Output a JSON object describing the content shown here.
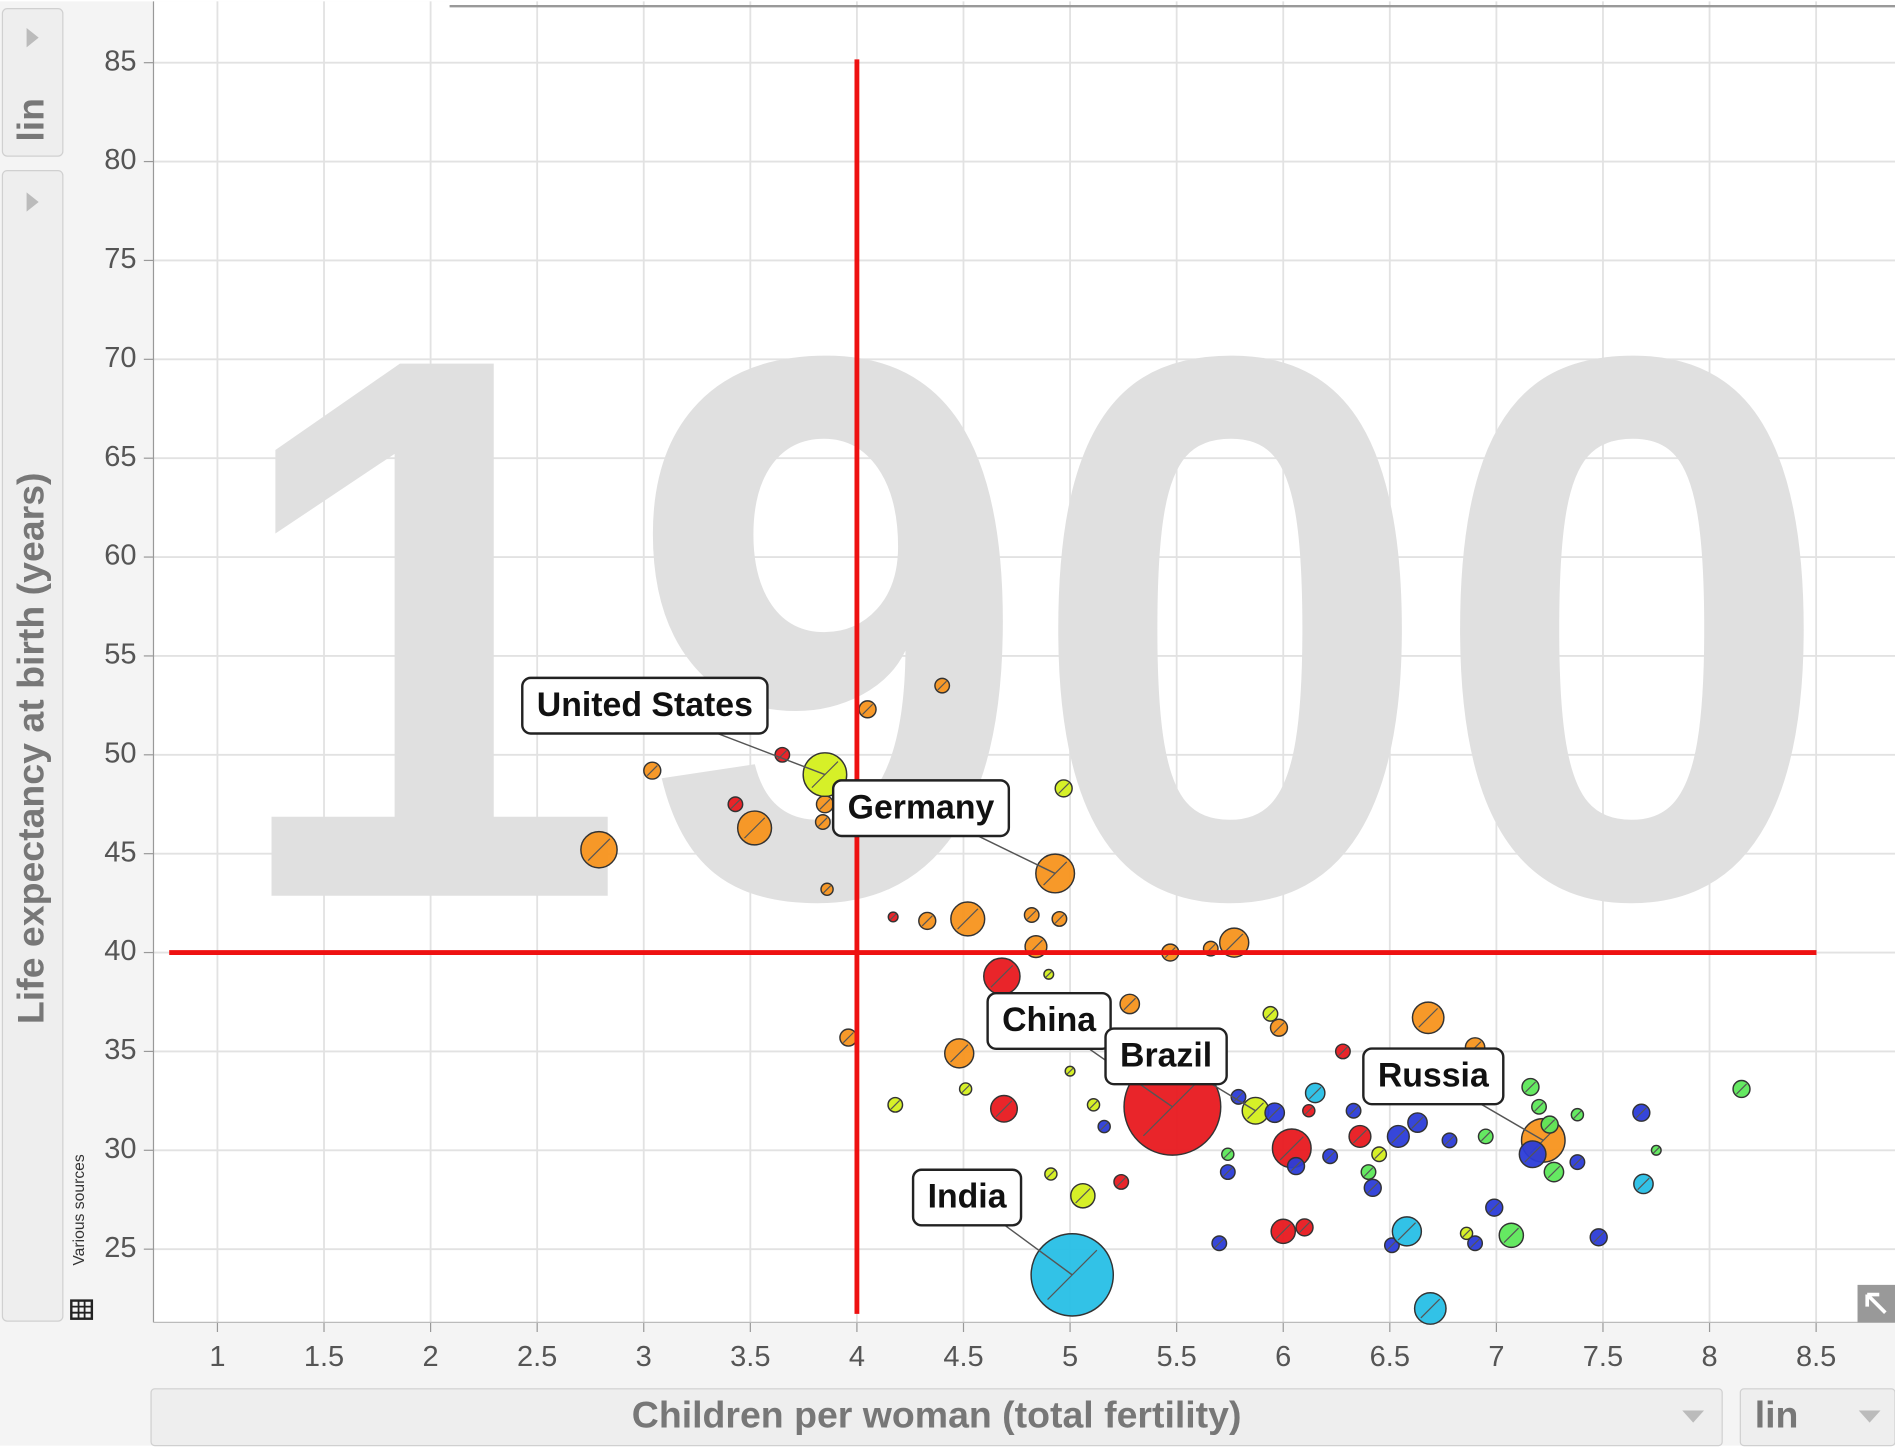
{
  "chart_data": {
    "type": "scatter",
    "year": "1900",
    "x_label": "Children per woman (total fertility)",
    "y_label": "Life expectancy at birth (years)",
    "x_scale": "lin",
    "y_scale": "lin",
    "source": "Various sources",
    "xlim": [
      0.7,
      8.87
    ],
    "ylim": [
      21.3,
      88.1
    ],
    "xticks": [
      1,
      1.5,
      2,
      2.5,
      3,
      3.5,
      4,
      4.5,
      5,
      5.5,
      6,
      6.5,
      7,
      7.5,
      8,
      8.5
    ],
    "yticks": [
      25,
      30,
      35,
      40,
      45,
      50,
      55,
      60,
      65,
      70,
      75,
      80,
      85
    ],
    "grid": true,
    "crosshair": {
      "x": 4,
      "y": 40
    },
    "series": [
      {
        "color": "#f7931e",
        "x": [
          2.79,
          3.04,
          3.52,
          4.05,
          4.4,
          3.86,
          4.93,
          4.33,
          4.52,
          4.82,
          4.95,
          4.84,
          5.47,
          5.66,
          5.77,
          5.28,
          3.96,
          4.48,
          6.68,
          5.98,
          7.22,
          3.85,
          3.84,
          6.9
        ],
        "values": [
          45.2,
          49.2,
          46.3,
          52.3,
          53.5,
          43.2,
          44.0,
          41.6,
          41.7,
          41.9,
          41.7,
          40.3,
          40.0,
          40.2,
          40.5,
          37.4,
          35.7,
          34.9,
          36.7,
          36.2,
          30.5,
          47.5,
          46.6,
          35.2
        ],
        "sizes": [
          15,
          7,
          14,
          7,
          6,
          5,
          16,
          7,
          14,
          6,
          6,
          9,
          7,
          6,
          12,
          8,
          7,
          12,
          13,
          7,
          18,
          7,
          6,
          8
        ]
      },
      {
        "color": "#e8191f",
        "x": [
          3.65,
          3.43,
          4.68,
          4.69,
          5.48,
          6.04,
          6.0,
          6.1,
          6.36,
          6.28,
          5.24,
          4.17,
          6.12
        ],
        "values": [
          50.0,
          47.5,
          38.8,
          32.1,
          32.2,
          30.1,
          25.9,
          26.1,
          30.7,
          35.0,
          28.4,
          41.8,
          32.0
        ],
        "sizes": [
          6,
          6,
          15,
          11,
          40,
          16,
          10,
          7,
          9,
          6,
          6,
          4,
          5
        ]
      },
      {
        "color": "#d4ef1c",
        "x": [
          3.85,
          4.97,
          4.18,
          5.06,
          5.87,
          5.94,
          4.9,
          4.91,
          5.0,
          5.11,
          4.51,
          6.86,
          6.45
        ],
        "values": [
          49.0,
          48.3,
          32.3,
          27.7,
          32.0,
          36.9,
          38.9,
          28.8,
          34.0,
          32.3,
          33.1,
          25.8,
          29.8
        ],
        "sizes": [
          18,
          7,
          6,
          10,
          11,
          6,
          4,
          5,
          4,
          5,
          5,
          5,
          6
        ]
      },
      {
        "color": "#2b3cd8",
        "x": [
          5.7,
          5.74,
          6.06,
          6.22,
          6.42,
          6.54,
          6.63,
          6.78,
          6.99,
          7.17,
          7.38,
          7.48,
          7.68,
          6.9,
          6.51,
          5.96,
          5.79,
          6.33,
          5.16
        ],
        "values": [
          25.3,
          28.9,
          29.2,
          29.7,
          28.1,
          30.7,
          31.4,
          30.5,
          27.1,
          29.8,
          29.4,
          25.6,
          31.9,
          25.3,
          25.2,
          31.9,
          32.7,
          32.0,
          31.2
        ],
        "sizes": [
          6,
          6,
          7,
          6,
          7,
          9,
          8,
          6,
          7,
          11,
          6,
          7,
          7,
          6,
          6,
          8,
          6,
          6,
          5
        ]
      },
      {
        "color": "#27bfe6",
        "x": [
          5.01,
          6.69,
          6.58,
          7.69,
          6.15
        ],
        "values": [
          23.7,
          22.0,
          25.9,
          28.3,
          32.9
        ],
        "sizes": [
          34,
          13,
          12,
          8,
          8
        ]
      },
      {
        "color": "#5de85a",
        "x": [
          7.07,
          7.27,
          8.15,
          7.16,
          7.2,
          7.38,
          7.75,
          6.95,
          6.4,
          5.74,
          7.25
        ],
        "values": [
          25.7,
          28.9,
          33.1,
          33.2,
          32.2,
          31.8,
          30.0,
          30.7,
          28.9,
          29.8,
          31.3
        ],
        "sizes": [
          10,
          8,
          7,
          7,
          6,
          5,
          4,
          6,
          6,
          5,
          7
        ]
      }
    ],
    "annotations": [
      {
        "text": "United States",
        "x": 3.85,
        "y": 49.0
      },
      {
        "text": "Germany",
        "x": 4.93,
        "y": 44.0
      },
      {
        "text": "China",
        "x": 5.48,
        "y": 32.2
      },
      {
        "text": "Brazil",
        "x": 5.87,
        "y": 32.0
      },
      {
        "text": "India",
        "x": 5.01,
        "y": 23.7
      },
      {
        "text": "Russia",
        "x": 7.22,
        "y": 30.5
      }
    ]
  }
}
